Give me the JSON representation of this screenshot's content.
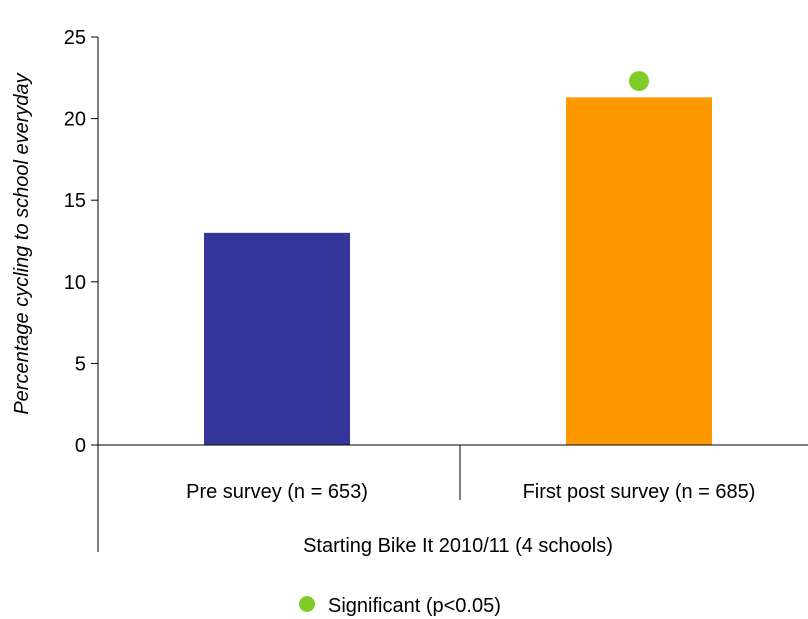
{
  "chart_data": {
    "type": "bar",
    "categories": [
      "Pre survey (n = 653)",
      "First post survey (n = 685)"
    ],
    "group_label": "Starting Bike It 2010/11 (4 schools)",
    "values": [
      13.0,
      21.3
    ],
    "bar_colors": [
      "#35359a",
      "#ff9900"
    ],
    "significant": [
      false,
      true
    ],
    "significance_marker_value": 22.3,
    "ylabel": "Percentage cycling to school everyday",
    "xlabel": "",
    "ylim": [
      0,
      25
    ],
    "yticks": [
      0,
      5,
      10,
      15,
      20,
      25
    ],
    "grid": false,
    "legend": {
      "position": "bottom-center",
      "entries": [
        {
          "label": "Significant (p<0.05)",
          "marker": "circle",
          "color": "#7fcc26"
        }
      ]
    }
  }
}
